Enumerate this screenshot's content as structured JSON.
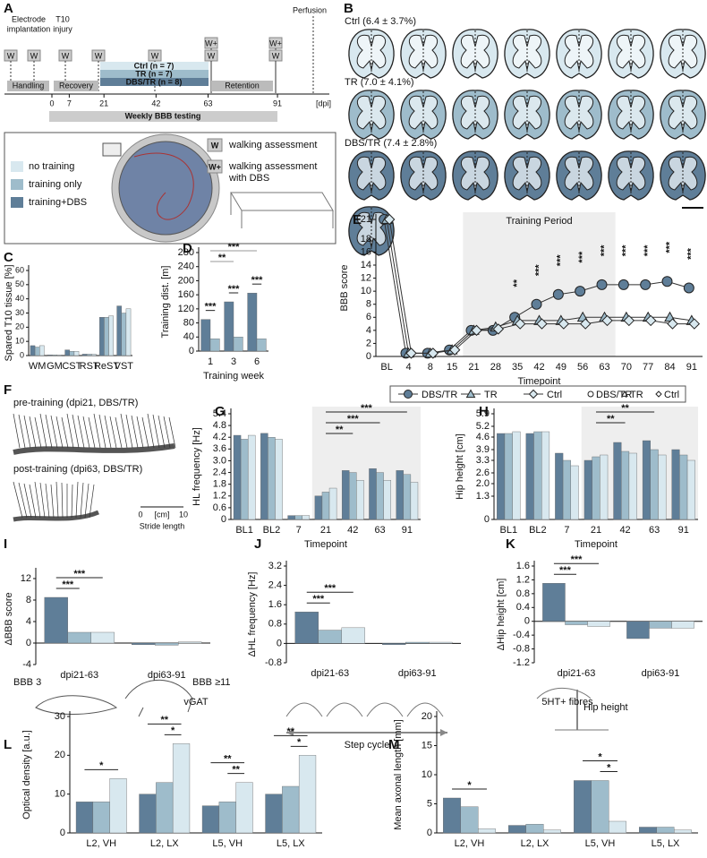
{
  "figure": {
    "A": {
      "label": "A",
      "implant": [
        "Electrode",
        "implantation"
      ],
      "injury": [
        "T10",
        "injury"
      ],
      "perfusion": "Perfusion",
      "markers": [
        "W",
        "W",
        "W",
        "W",
        "W",
        "W+",
        "W",
        "W+",
        "W"
      ],
      "phases": [
        "Handling",
        "Recovery",
        "Retention"
      ],
      "groups": [
        "Ctrl (n = 7)",
        "TR (n = 7)",
        "DBS/TR (n = 8)"
      ],
      "group_colors": [
        "#d8e8ef",
        "#9ebccb",
        "#5f7e98"
      ],
      "ticks": [
        0,
        7,
        21,
        42,
        63,
        91
      ],
      "unit": "[dpi]",
      "testing": "Weekly BBB testing",
      "legend": [
        "no training",
        "training only",
        "training+DBS"
      ],
      "key": [
        {
          "symbol": "W",
          "lines": [
            "walking assessment"
          ]
        },
        {
          "symbol": "W+",
          "lines": [
            "walking assessment",
            "with DBS"
          ]
        }
      ]
    },
    "B": {
      "label": "B",
      "groups": [
        "Ctrl (6.4 ± 3.7%)",
        "TR (7.0 ± 4.1%)",
        "DBS/TR (7.4 ± 2.8%)"
      ]
    },
    "F": {
      "label": "F",
      "pre": "pre-training (dpi21, DBS/TR)",
      "post": "post-training (dpi63, DBS/TR)",
      "scale": [
        "0",
        "[cm]",
        "10"
      ],
      "scale_label": "Stride length"
    },
    "I": {
      "labels": [
        "BBB 3",
        "BBB ≥11"
      ]
    },
    "J": {
      "label": "Step cycle"
    },
    "K": {
      "label": "Hip height"
    }
  },
  "chart_data": [
    {
      "type": "bar",
      "label": "C",
      "y_label": "Spared T10 tissue [%]",
      "categories": [
        "WM",
        "GM",
        "CST",
        "RST",
        "ReST",
        "VST"
      ],
      "series": [
        {
          "name": "DBS/TR",
          "color": "#5f7e98",
          "values": [
            7,
            0.5,
            4,
            1,
            27,
            35
          ]
        },
        {
          "name": "TR",
          "color": "#9ebccb",
          "values": [
            6,
            0.5,
            3,
            1,
            27,
            30
          ]
        },
        {
          "name": "Ctrl",
          "color": "#d8e8ef",
          "values": [
            7,
            0.5,
            3,
            1,
            28,
            33
          ]
        }
      ],
      "ylim": [
        0,
        60
      ],
      "yticks": [
        0,
        10,
        20,
        30,
        40,
        50,
        60
      ]
    },
    {
      "type": "bar",
      "label": "D",
      "y_label": "Training dist. [m]",
      "x_label": "Training week",
      "categories": [
        "1",
        "3",
        "6"
      ],
      "series": [
        {
          "name": "DBS/TR",
          "color": "#5f7e98",
          "values": [
            90,
            140,
            165
          ]
        },
        {
          "name": "TR",
          "color": "#9ebccb",
          "values": [
            35,
            40,
            35
          ]
        }
      ],
      "ylim": [
        0,
        280
      ],
      "yticks": [
        0,
        40,
        80,
        120,
        160,
        200,
        240,
        280
      ],
      "significance": [
        {
          "between": [
            "1",
            "6"
          ],
          "label": "***"
        },
        {
          "between": [
            "1",
            "3"
          ],
          "label": "**"
        },
        {
          "category": "1",
          "between": [
            "DBS/TR",
            "TR"
          ],
          "label": "***"
        },
        {
          "category": "3",
          "between": [
            "DBS/TR",
            "TR"
          ],
          "label": "***"
        },
        {
          "category": "6",
          "between": [
            "DBS/TR",
            "TR"
          ],
          "label": "***"
        }
      ]
    },
    {
      "type": "line",
      "label": "E",
      "y_label": "BBB score",
      "x_label": "Timepoint",
      "categories": [
        "BL",
        "4",
        "8",
        "15",
        "21",
        "28",
        "35",
        "42",
        "49",
        "56",
        "63",
        "70",
        "77",
        "84",
        "91"
      ],
      "series": [
        {
          "name": "DBS/TR",
          "color": "#5f7e98",
          "marker": "circle",
          "values": [
            21,
            0.5,
            0.5,
            1,
            4,
            4,
            6,
            8,
            9.5,
            10,
            11,
            11,
            11,
            11.5,
            10.5
          ]
        },
        {
          "name": "TR",
          "color": "#9ebccb",
          "marker": "triangle",
          "values": [
            21,
            0.5,
            0.5,
            1,
            4,
            4.5,
            5.5,
            5.5,
            5.5,
            6,
            6,
            6,
            6,
            6,
            5.5
          ]
        },
        {
          "name": "Ctrl",
          "color": "#d8e8ef",
          "marker": "diamond",
          "values": [
            21,
            0.5,
            0.5,
            1,
            4,
            4.2,
            5,
            5,
            5,
            5,
            5.5,
            5.5,
            5.5,
            5,
            5
          ]
        }
      ],
      "point_legend": [
        "DBS/TR",
        "TR",
        "Ctrl"
      ],
      "ylim": [
        0,
        21
      ],
      "yticks": [
        0,
        2,
        4,
        6,
        8,
        10,
        12,
        14,
        16,
        18,
        21
      ],
      "shaded": {
        "from": "21",
        "to": "63",
        "label": "Training Period"
      },
      "significance": [
        {
          "category": "35",
          "label": "**"
        },
        {
          "category": "42",
          "label": "***"
        },
        {
          "category": "49",
          "label": "***"
        },
        {
          "category": "56",
          "label": "***"
        },
        {
          "category": "63",
          "label": "***"
        },
        {
          "category": "70",
          "label": "***"
        },
        {
          "category": "77",
          "label": "***"
        },
        {
          "category": "84",
          "label": "***"
        },
        {
          "category": "91",
          "label": "***"
        }
      ]
    },
    {
      "type": "bar",
      "label": "G",
      "y_label": "HL frequency [Hz]",
      "x_label": "Timepoint",
      "categories": [
        "BL1",
        "BL2",
        "7",
        "21",
        "42",
        "63",
        "91"
      ],
      "series": [
        {
          "name": "DBS/TR",
          "color": "#5f7e98",
          "values": [
            4.3,
            4.4,
            0.2,
            1.2,
            2.5,
            2.6,
            2.5
          ]
        },
        {
          "name": "TR",
          "color": "#9ebccb",
          "values": [
            4.1,
            4.2,
            0.2,
            1.4,
            2.4,
            2.4,
            2.3
          ]
        },
        {
          "name": "Ctrl",
          "color": "#d8e8ef",
          "values": [
            4.3,
            4.1,
            0.2,
            1.6,
            2,
            2,
            1.9
          ]
        }
      ],
      "ylim": [
        0,
        5.4
      ],
      "yticks": [
        0,
        0.6,
        1.2,
        1.8,
        2.4,
        {
          "value": 3,
          "label": "3.0"
        },
        3.6,
        4.2,
        4.8,
        5.4
      ],
      "shaded": {
        "from": "21",
        "to": "91"
      },
      "significance": [
        {
          "between": [
            "21",
            "91"
          ],
          "label": "***"
        },
        {
          "between": [
            "21",
            "63"
          ],
          "label": "***"
        },
        {
          "between": [
            "21",
            "42"
          ],
          "label": "**"
        }
      ]
    },
    {
      "type": "bar",
      "label": "H",
      "y_label": "Hip height [cm]",
      "x_label": "Timepoint",
      "categories": [
        "BL1",
        "BL2",
        "7",
        "21",
        "42",
        "63",
        "91"
      ],
      "series": [
        {
          "name": "DBS/TR",
          "color": "#5f7e98",
          "values": [
            4.8,
            4.8,
            3.7,
            3.3,
            4.3,
            4.4,
            3.9
          ]
        },
        {
          "name": "TR",
          "color": "#9ebccb",
          "values": [
            4.8,
            4.9,
            3.3,
            3.5,
            3.8,
            3.9,
            3.6
          ]
        },
        {
          "name": "Ctrl",
          "color": "#d8e8ef",
          "values": [
            4.9,
            4.9,
            3,
            3.6,
            3.7,
            3.6,
            3.3
          ]
        }
      ],
      "ylim": [
        0,
        5.9
      ],
      "yticks": [
        0,
        1.3,
        {
          "value": 2,
          "label": "2.0"
        },
        2.6,
        3.3,
        3.9,
        4.6,
        5.2,
        5.9
      ],
      "shaded": {
        "from": "21",
        "to": "91"
      },
      "significance": [
        {
          "between": [
            "21",
            "63"
          ],
          "label": "**"
        },
        {
          "between": [
            "21",
            "42"
          ],
          "label": "**"
        }
      ]
    },
    {
      "type": "bar",
      "label": "I",
      "y_label": "ΔBBB score",
      "categories": [
        "dpi21-63",
        "dpi63-91"
      ],
      "series": [
        {
          "name": "DBS/TR",
          "color": "#5f7e98",
          "values": [
            8.5,
            -0.3
          ]
        },
        {
          "name": "TR",
          "color": "#9ebccb",
          "values": [
            2,
            -0.4
          ]
        },
        {
          "name": "Ctrl",
          "color": "#d8e8ef",
          "values": [
            2,
            0.2
          ]
        }
      ],
      "ylim": [
        -4,
        13
      ],
      "yticks": [
        -4,
        0,
        4,
        8,
        12
      ],
      "significance": [
        {
          "category": "dpi21-63",
          "between": [
            "DBS/TR",
            "TR"
          ],
          "label": "***"
        },
        {
          "category": "dpi21-63",
          "between": [
            "DBS/TR",
            "Ctrl"
          ],
          "label": "***"
        }
      ]
    },
    {
      "type": "bar",
      "label": "J",
      "y_label": "ΔHL frequency [Hz]",
      "categories": [
        "dpi21-63",
        "dpi63-91"
      ],
      "series": [
        {
          "name": "DBS/TR",
          "color": "#5f7e98",
          "values": [
            1.3,
            -0.05
          ]
        },
        {
          "name": "TR",
          "color": "#9ebccb",
          "values": [
            0.55,
            0.05
          ]
        },
        {
          "name": "Ctrl",
          "color": "#d8e8ef",
          "values": [
            0.65,
            0.05
          ]
        }
      ],
      "ylim": [
        -0.8,
        3.2
      ],
      "yticks": [
        -0.8,
        0,
        0.8,
        1.6,
        2.4,
        3.2
      ],
      "significance": [
        {
          "category": "dpi21-63",
          "between": [
            "DBS/TR",
            "TR"
          ],
          "label": "***"
        },
        {
          "category": "dpi21-63",
          "between": [
            "DBS/TR",
            "Ctrl"
          ],
          "label": "***"
        }
      ]
    },
    {
      "type": "bar",
      "label": "K",
      "y_label": "ΔHip height [cm]",
      "categories": [
        "dpi21-63",
        "dpi63-91"
      ],
      "series": [
        {
          "name": "DBS/TR",
          "color": "#5f7e98",
          "values": [
            1.1,
            -0.5
          ]
        },
        {
          "name": "TR",
          "color": "#9ebccb",
          "values": [
            -0.1,
            -0.2
          ]
        },
        {
          "name": "Ctrl",
          "color": "#d8e8ef",
          "values": [
            -0.15,
            -0.2
          ]
        }
      ],
      "ylim": [
        -1.2,
        1.6
      ],
      "yticks": [
        -1.2,
        -0.8,
        -0.4,
        0,
        0.4,
        0.8,
        1.2,
        1.6
      ],
      "significance": [
        {
          "category": "dpi21-63",
          "between": [
            "DBS/TR",
            "TR"
          ],
          "label": "***"
        },
        {
          "category": "dpi21-63",
          "between": [
            "DBS/TR",
            "Ctrl"
          ],
          "label": "***"
        }
      ]
    },
    {
      "type": "bar",
      "label": "L",
      "title": "vGAT",
      "y_label": "Optical density [a.u.]",
      "categories": [
        "L2, VH",
        "L2, LX",
        "L5, VH",
        "L5, LX"
      ],
      "series": [
        {
          "name": "DBS/TR",
          "color": "#5f7e98",
          "values": [
            8,
            10,
            7,
            10
          ]
        },
        {
          "name": "TR",
          "color": "#9ebccb",
          "values": [
            8,
            13,
            8,
            12
          ]
        },
        {
          "name": "Ctrl",
          "color": "#d8e8ef",
          "values": [
            14,
            23,
            13,
            20
          ]
        }
      ],
      "ylim": [
        0,
        30
      ],
      "yticks": [
        0,
        10,
        20,
        30
      ],
      "significance": [
        {
          "category": "L2, VH",
          "between": [
            "DBS/TR",
            "Ctrl"
          ],
          "label": "*"
        },
        {
          "category": "L2, LX",
          "between": [
            "TR",
            "Ctrl"
          ],
          "label": "*"
        },
        {
          "category": "L2, LX",
          "between": [
            "DBS/TR",
            "Ctrl"
          ],
          "label": "**"
        },
        {
          "category": "L5, VH",
          "between": [
            "TR",
            "Ctrl"
          ],
          "label": "**"
        },
        {
          "category": "L5, VH",
          "between": [
            "DBS/TR",
            "Ctrl"
          ],
          "label": "**"
        },
        {
          "category": "L5, LX",
          "between": [
            "TR",
            "Ctrl"
          ],
          "label": "*"
        },
        {
          "category": "L5, LX",
          "between": [
            "DBS/TR",
            "Ctrl"
          ],
          "label": "**"
        }
      ]
    },
    {
      "type": "bar",
      "label": "M",
      "title": "5HT+ fibres",
      "y_label": "Mean axonal length [mm]",
      "categories": [
        "L2, VH",
        "L2, LX",
        "L5, VH",
        "L5, LX"
      ],
      "series": [
        {
          "name": "DBS/TR",
          "color": "#5f7e98",
          "values": [
            6,
            1.3,
            9,
            1
          ]
        },
        {
          "name": "TR",
          "color": "#9ebccb",
          "values": [
            4.5,
            1.5,
            9,
            1
          ]
        },
        {
          "name": "Ctrl",
          "color": "#d8e8ef",
          "values": [
            0.7,
            0.5,
            2,
            0.5
          ]
        }
      ],
      "ylim": [
        0,
        20
      ],
      "yticks": [
        0,
        5,
        10,
        15,
        20
      ],
      "significance": [
        {
          "category": "L2, VH",
          "between": [
            "DBS/TR",
            "Ctrl"
          ],
          "label": "*"
        },
        {
          "category": "L5, VH",
          "between": [
            "TR",
            "Ctrl"
          ],
          "label": "*"
        },
        {
          "category": "L5, VH",
          "between": [
            "DBS/TR",
            "Ctrl"
          ],
          "label": "*"
        }
      ]
    }
  ]
}
